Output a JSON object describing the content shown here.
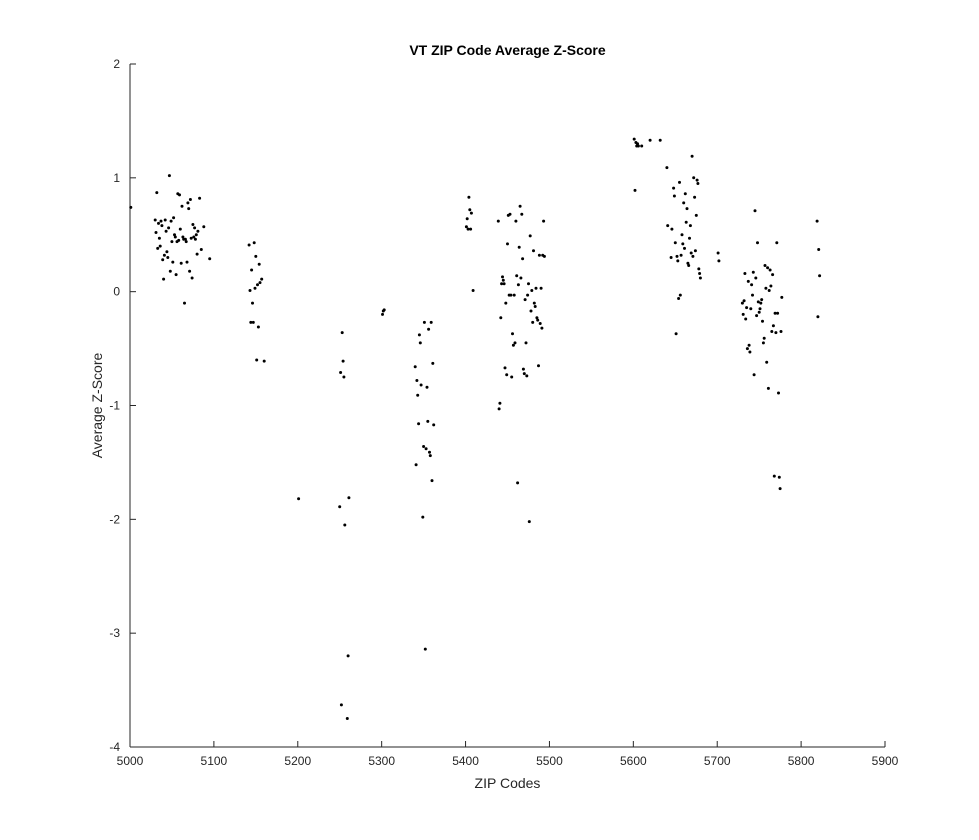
{
  "chart_data": {
    "type": "scatter",
    "title": "VT ZIP Code Average Z-Score",
    "xlabel": "ZIP Codes",
    "ylabel": "Average Z-Score",
    "xlim": [
      5000,
      5900
    ],
    "ylim": [
      -4,
      2
    ],
    "xticks": [
      5000,
      5100,
      5200,
      5300,
      5400,
      5500,
      5600,
      5700,
      5800,
      5900
    ],
    "yticks": [
      -4,
      -3,
      -2,
      -1,
      0,
      1,
      2
    ],
    "grid": false,
    "legend": "none",
    "marker_color": "#000000",
    "axis_color": "#262626",
    "points": [
      [
        5001,
        0.74
      ],
      [
        5030,
        0.63
      ],
      [
        5031,
        0.52
      ],
      [
        5032,
        0.87
      ],
      [
        5033,
        0.38
      ],
      [
        5034,
        0.6
      ],
      [
        5035,
        0.47
      ],
      [
        5036,
        0.4
      ],
      [
        5037,
        0.62
      ],
      [
        5038,
        0.58
      ],
      [
        5039,
        0.28
      ],
      [
        5040,
        0.11
      ],
      [
        5041,
        0.32
      ],
      [
        5042,
        0.63
      ],
      [
        5043,
        0.53
      ],
      [
        5044,
        0.35
      ],
      [
        5045,
        0.3
      ],
      [
        5046,
        0.56
      ],
      [
        5047,
        1.02
      ],
      [
        5048,
        0.18
      ],
      [
        5049,
        0.62
      ],
      [
        5050,
        0.44
      ],
      [
        5051,
        0.26
      ],
      [
        5052,
        0.65
      ],
      [
        5053,
        0.5
      ],
      [
        5054,
        0.48
      ],
      [
        5055,
        0.15
      ],
      [
        5056,
        0.44
      ],
      [
        5057,
        0.86
      ],
      [
        5058,
        0.45
      ],
      [
        5059,
        0.85
      ],
      [
        5060,
        0.55
      ],
      [
        5061,
        0.25
      ],
      [
        5062,
        0.75
      ],
      [
        5063,
        0.48
      ],
      [
        5064,
        0.46
      ],
      [
        5065,
        -0.1
      ],
      [
        5066,
        0.46
      ],
      [
        5067,
        0.44
      ],
      [
        5068,
        0.26
      ],
      [
        5069,
        0.78
      ],
      [
        5070,
        0.73
      ],
      [
        5071,
        0.18
      ],
      [
        5072,
        0.81
      ],
      [
        5073,
        0.47
      ],
      [
        5074,
        0.12
      ],
      [
        5075,
        0.59
      ],
      [
        5076,
        0.48
      ],
      [
        5077,
        0.56
      ],
      [
        5078,
        0.46
      ],
      [
        5079,
        0.5
      ],
      [
        5080,
        0.33
      ],
      [
        5081,
        0.53
      ],
      [
        5083,
        0.82
      ],
      [
        5085,
        0.37
      ],
      [
        5088,
        0.57
      ],
      [
        5095,
        0.29
      ],
      [
        5142,
        0.41
      ],
      [
        5143,
        0.01
      ],
      [
        5144,
        -0.27
      ],
      [
        5145,
        0.19
      ],
      [
        5146,
        -0.1
      ],
      [
        5147,
        -0.27
      ],
      [
        5148,
        0.43
      ],
      [
        5149,
        0.03
      ],
      [
        5150,
        0.31
      ],
      [
        5151,
        -0.6
      ],
      [
        5152,
        0.06
      ],
      [
        5153,
        -0.31
      ],
      [
        5154,
        0.24
      ],
      [
        5155,
        0.08
      ],
      [
        5157,
        0.11
      ],
      [
        5160,
        -0.61
      ],
      [
        5201,
        -1.82
      ],
      [
        5250,
        -1.89
      ],
      [
        5251,
        -0.71
      ],
      [
        5252,
        -3.63
      ],
      [
        5253,
        -0.36
      ],
      [
        5254,
        -0.61
      ],
      [
        5255,
        -0.75
      ],
      [
        5256,
        -2.05
      ],
      [
        5259,
        -3.75
      ],
      [
        5260,
        -3.2
      ],
      [
        5261,
        -1.81
      ],
      [
        5301,
        -0.2
      ],
      [
        5302,
        -0.17
      ],
      [
        5303,
        -0.16
      ],
      [
        5340,
        -0.66
      ],
      [
        5341,
        -1.52
      ],
      [
        5342,
        -0.78
      ],
      [
        5343,
        -0.91
      ],
      [
        5344,
        -1.16
      ],
      [
        5345,
        -0.38
      ],
      [
        5346,
        -0.45
      ],
      [
        5347,
        -0.82
      ],
      [
        5349,
        -1.98
      ],
      [
        5350,
        -1.36
      ],
      [
        5351,
        -0.27
      ],
      [
        5352,
        -3.14
      ],
      [
        5353,
        -1.38
      ],
      [
        5354,
        -0.84
      ],
      [
        5355,
        -1.14
      ],
      [
        5356,
        -0.33
      ],
      [
        5357,
        -1.41
      ],
      [
        5358,
        -1.44
      ],
      [
        5359,
        -0.27
      ],
      [
        5360,
        -1.66
      ],
      [
        5361,
        -0.63
      ],
      [
        5362,
        -1.17
      ],
      [
        5401,
        0.57
      ],
      [
        5402,
        0.64
      ],
      [
        5403,
        0.55
      ],
      [
        5404,
        0.83
      ],
      [
        5405,
        0.72
      ],
      [
        5406,
        0.55
      ],
      [
        5407,
        0.69
      ],
      [
        5409,
        0.01
      ],
      [
        5439,
        0.62
      ],
      [
        5440,
        -1.03
      ],
      [
        5441,
        -0.98
      ],
      [
        5442,
        -0.23
      ],
      [
        5443,
        0.07
      ],
      [
        5444,
        0.13
      ],
      [
        5445,
        0.1
      ],
      [
        5446,
        0.07
      ],
      [
        5447,
        -0.67
      ],
      [
        5448,
        -0.1
      ],
      [
        5449,
        -0.73
      ],
      [
        5450,
        0.42
      ],
      [
        5451,
        0.67
      ],
      [
        5452,
        -0.03
      ],
      [
        5453,
        0.68
      ],
      [
        5454,
        -0.03
      ],
      [
        5455,
        -0.75
      ],
      [
        5456,
        -0.37
      ],
      [
        5457,
        -0.47
      ],
      [
        5458,
        -0.03
      ],
      [
        5459,
        -0.45
      ],
      [
        5460,
        0.62
      ],
      [
        5461,
        0.14
      ],
      [
        5462,
        -1.68
      ],
      [
        5463,
        0.06
      ],
      [
        5464,
        0.39
      ],
      [
        5465,
        0.75
      ],
      [
        5466,
        0.12
      ],
      [
        5467,
        0.68
      ],
      [
        5468,
        0.29
      ],
      [
        5469,
        -0.68
      ],
      [
        5470,
        -0.72
      ],
      [
        5471,
        -0.07
      ],
      [
        5472,
        -0.45
      ],
      [
        5473,
        -0.74
      ],
      [
        5474,
        -0.03
      ],
      [
        5475,
        0.07
      ],
      [
        5476,
        -2.02
      ],
      [
        5477,
        0.49
      ],
      [
        5478,
        -0.17
      ],
      [
        5479,
        0.01
      ],
      [
        5480,
        -0.27
      ],
      [
        5481,
        0.36
      ],
      [
        5482,
        -0.1
      ],
      [
        5483,
        -0.13
      ],
      [
        5484,
        0.03
      ],
      [
        5485,
        -0.23
      ],
      [
        5486,
        -0.25
      ],
      [
        5487,
        -0.65
      ],
      [
        5488,
        0.32
      ],
      [
        5489,
        -0.28
      ],
      [
        5490,
        0.03
      ],
      [
        5491,
        -0.32
      ],
      [
        5492,
        0.32
      ],
      [
        5493,
        0.62
      ],
      [
        5494,
        0.31
      ],
      [
        5601,
        1.34
      ],
      [
        5602,
        0.89
      ],
      [
        5603,
        1.31
      ],
      [
        5604,
        1.28
      ],
      [
        5605,
        1.3
      ],
      [
        5606,
        1.28
      ],
      [
        5610,
        1.28
      ],
      [
        5620,
        1.33
      ],
      [
        5632,
        1.33
      ],
      [
        5640,
        1.09
      ],
      [
        5641,
        0.58
      ],
      [
        5645,
        0.3
      ],
      [
        5646,
        0.55
      ],
      [
        5648,
        0.91
      ],
      [
        5649,
        0.84
      ],
      [
        5650,
        0.43
      ],
      [
        5651,
        -0.37
      ],
      [
        5652,
        0.31
      ],
      [
        5653,
        0.27
      ],
      [
        5654,
        -0.06
      ],
      [
        5655,
        0.96
      ],
      [
        5656,
        -0.03
      ],
      [
        5657,
        0.32
      ],
      [
        5658,
        0.5
      ],
      [
        5659,
        0.42
      ],
      [
        5660,
        0.78
      ],
      [
        5661,
        0.38
      ],
      [
        5662,
        0.86
      ],
      [
        5663,
        0.61
      ],
      [
        5664,
        0.73
      ],
      [
        5665,
        0.25
      ],
      [
        5666,
        0.23
      ],
      [
        5667,
        0.47
      ],
      [
        5668,
        0.58
      ],
      [
        5669,
        0.34
      ],
      [
        5670,
        1.19
      ],
      [
        5671,
        0.31
      ],
      [
        5672,
        1.0
      ],
      [
        5673,
        0.83
      ],
      [
        5674,
        0.36
      ],
      [
        5675,
        0.67
      ],
      [
        5676,
        0.98
      ],
      [
        5677,
        0.95
      ],
      [
        5678,
        0.2
      ],
      [
        5679,
        0.16
      ],
      [
        5680,
        0.12
      ],
      [
        5701,
        0.34
      ],
      [
        5702,
        0.27
      ],
      [
        5730,
        -0.1
      ],
      [
        5731,
        -0.2
      ],
      [
        5732,
        -0.08
      ],
      [
        5733,
        0.16
      ],
      [
        5734,
        -0.24
      ],
      [
        5735,
        -0.14
      ],
      [
        5736,
        -0.5
      ],
      [
        5737,
        0.09
      ],
      [
        5738,
        -0.47
      ],
      [
        5739,
        -0.53
      ],
      [
        5740,
        -0.15
      ],
      [
        5741,
        0.06
      ],
      [
        5742,
        -0.03
      ],
      [
        5743,
        0.17
      ],
      [
        5744,
        -0.73
      ],
      [
        5745,
        0.71
      ],
      [
        5746,
        0.12
      ],
      [
        5747,
        -0.21
      ],
      [
        5748,
        0.43
      ],
      [
        5749,
        -0.09
      ],
      [
        5750,
        -0.18
      ],
      [
        5751,
        -0.15
      ],
      [
        5752,
        -0.1
      ],
      [
        5753,
        -0.07
      ],
      [
        5754,
        -0.26
      ],
      [
        5755,
        -0.45
      ],
      [
        5756,
        -0.41
      ],
      [
        5757,
        0.23
      ],
      [
        5758,
        0.03
      ],
      [
        5759,
        -0.62
      ],
      [
        5760,
        0.21
      ],
      [
        5761,
        -0.85
      ],
      [
        5762,
        0.01
      ],
      [
        5763,
        0.19
      ],
      [
        5764,
        0.05
      ],
      [
        5765,
        -0.35
      ],
      [
        5766,
        0.15
      ],
      [
        5767,
        -0.3
      ],
      [
        5768,
        -1.62
      ],
      [
        5769,
        -0.19
      ],
      [
        5770,
        -0.36
      ],
      [
        5771,
        0.43
      ],
      [
        5772,
        -0.19
      ],
      [
        5773,
        -0.89
      ],
      [
        5774,
        -1.63
      ],
      [
        5775,
        -1.73
      ],
      [
        5776,
        -0.35
      ],
      [
        5777,
        -0.05
      ],
      [
        5819,
        0.62
      ],
      [
        5820,
        -0.22
      ],
      [
        5821,
        0.37
      ],
      [
        5822,
        0.14
      ]
    ]
  }
}
